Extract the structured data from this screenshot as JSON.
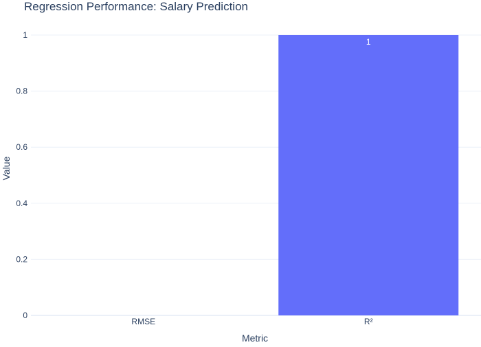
{
  "chart_data": {
    "type": "bar",
    "title": "Regression Performance: Salary Prediction",
    "xlabel": "Metric",
    "ylabel": "Value",
    "categories": [
      "RMSE",
      "R²"
    ],
    "values": [
      0,
      1
    ],
    "data_labels": [
      "",
      "1"
    ],
    "ylim": [
      0,
      1
    ],
    "yticks": [
      0,
      0.2,
      0.4,
      0.6,
      0.8,
      1
    ],
    "ytick_labels": [
      "0",
      "0.2",
      "0.4",
      "0.6",
      "0.8",
      "1"
    ],
    "grid": true,
    "bar_color": "#636efa",
    "grid_color": "#ebf0f8",
    "text_color": "#2a3f5f",
    "data_label_color": "#ffffff"
  }
}
